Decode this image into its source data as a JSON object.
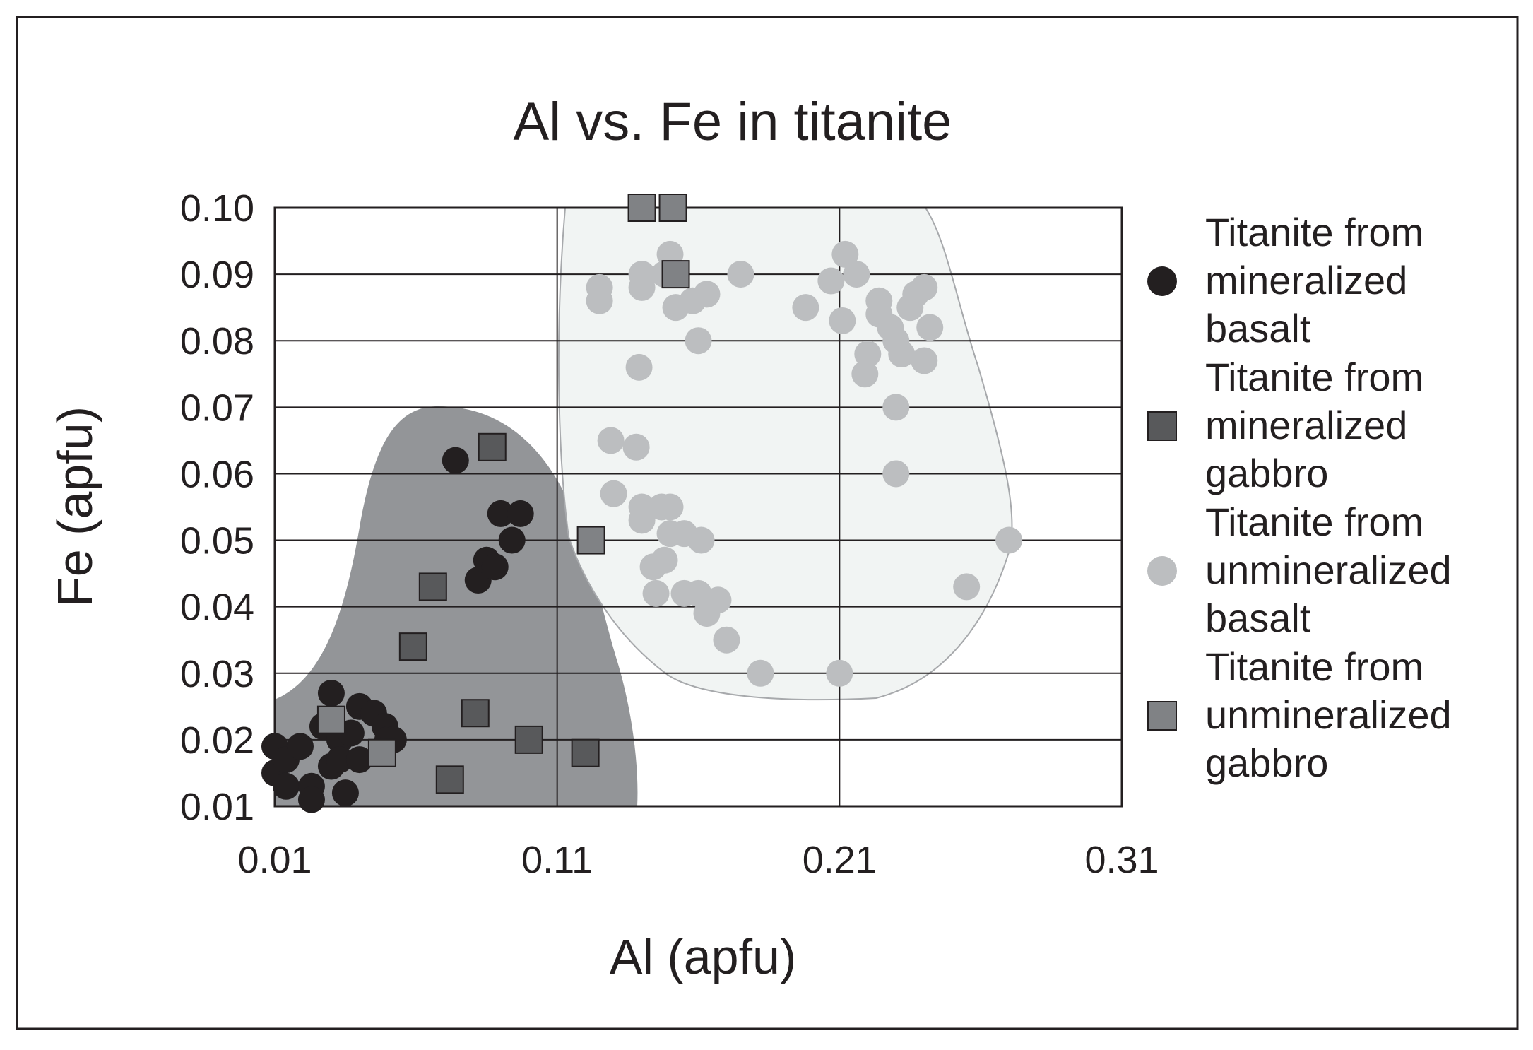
{
  "chart_data": {
    "type": "scatter",
    "title": "Al vs. Fe in titanite",
    "xlabel": "Al (apfu)",
    "ylabel": "Fe (apfu)",
    "xlim": [
      0.01,
      0.31
    ],
    "ylim": [
      0.01,
      0.1
    ],
    "x_ticks": [
      "0.01",
      "0.11",
      "0.21",
      "0.31"
    ],
    "y_ticks": [
      "0.10",
      "0.09",
      "0.08",
      "0.07",
      "0.06",
      "0.05",
      "0.04",
      "0.03",
      "0.02",
      "0.01"
    ],
    "grid": "on",
    "legend_position": "right",
    "series": [
      {
        "name": "Titanite from mineralized basalt",
        "name_lines": [
          "Titanite from",
          "mineralized",
          "basalt"
        ],
        "marker": "circle",
        "color": "#231f20",
        "points": [
          [
            0.01,
            0.019
          ],
          [
            0.01,
            0.015
          ],
          [
            0.014,
            0.017
          ],
          [
            0.014,
            0.013
          ],
          [
            0.019,
            0.019
          ],
          [
            0.023,
            0.013
          ],
          [
            0.023,
            0.011
          ],
          [
            0.027,
            0.022
          ],
          [
            0.03,
            0.027
          ],
          [
            0.03,
            0.023
          ],
          [
            0.03,
            0.016
          ],
          [
            0.033,
            0.02
          ],
          [
            0.033,
            0.017
          ],
          [
            0.035,
            0.012
          ],
          [
            0.037,
            0.021
          ],
          [
            0.04,
            0.025
          ],
          [
            0.04,
            0.017
          ],
          [
            0.045,
            0.024
          ],
          [
            0.049,
            0.022
          ],
          [
            0.05,
            0.02
          ],
          [
            0.052,
            0.02
          ],
          [
            0.074,
            0.062
          ],
          [
            0.082,
            0.044
          ],
          [
            0.085,
            0.047
          ],
          [
            0.088,
            0.046
          ],
          [
            0.09,
            0.054
          ],
          [
            0.094,
            0.05
          ],
          [
            0.097,
            0.054
          ]
        ]
      },
      {
        "name": "Titanite from mineralized gabbro",
        "name_lines": [
          "Titanite from",
          "mineralized",
          "gabbro"
        ],
        "marker": "square",
        "color": "#58595b",
        "points": [
          [
            0.087,
            0.064
          ],
          [
            0.066,
            0.043
          ],
          [
            0.059,
            0.034
          ],
          [
            0.081,
            0.024
          ],
          [
            0.072,
            0.014
          ],
          [
            0.1,
            0.02
          ],
          [
            0.12,
            0.018
          ]
        ]
      },
      {
        "name": "Titanite from unmineralized basalt",
        "name_lines": [
          "Titanite from",
          "unmineralized",
          "basalt"
        ],
        "marker": "circle",
        "color": "#bcbec0",
        "points": [
          [
            0.125,
            0.088
          ],
          [
            0.125,
            0.086
          ],
          [
            0.14,
            0.09
          ],
          [
            0.14,
            0.088
          ],
          [
            0.15,
            0.093
          ],
          [
            0.148,
            0.09
          ],
          [
            0.152,
            0.085
          ],
          [
            0.158,
            0.086
          ],
          [
            0.163,
            0.087
          ],
          [
            0.175,
            0.09
          ],
          [
            0.16,
            0.08
          ],
          [
            0.139,
            0.076
          ],
          [
            0.198,
            0.085
          ],
          [
            0.207,
            0.089
          ],
          [
            0.212,
            0.093
          ],
          [
            0.216,
            0.09
          ],
          [
            0.211,
            0.083
          ],
          [
            0.22,
            0.078
          ],
          [
            0.219,
            0.075
          ],
          [
            0.224,
            0.086
          ],
          [
            0.224,
            0.084
          ],
          [
            0.228,
            0.082
          ],
          [
            0.23,
            0.08
          ],
          [
            0.232,
            0.078
          ],
          [
            0.235,
            0.085
          ],
          [
            0.237,
            0.087
          ],
          [
            0.24,
            0.088
          ],
          [
            0.242,
            0.082
          ],
          [
            0.24,
            0.077
          ],
          [
            0.23,
            0.07
          ],
          [
            0.23,
            0.06
          ],
          [
            0.129,
            0.065
          ],
          [
            0.138,
            0.064
          ],
          [
            0.13,
            0.057
          ],
          [
            0.14,
            0.055
          ],
          [
            0.14,
            0.053
          ],
          [
            0.147,
            0.055
          ],
          [
            0.15,
            0.055
          ],
          [
            0.15,
            0.051
          ],
          [
            0.155,
            0.051
          ],
          [
            0.161,
            0.05
          ],
          [
            0.148,
            0.047
          ],
          [
            0.144,
            0.046
          ],
          [
            0.145,
            0.042
          ],
          [
            0.155,
            0.042
          ],
          [
            0.16,
            0.042
          ],
          [
            0.167,
            0.041
          ],
          [
            0.163,
            0.039
          ],
          [
            0.17,
            0.035
          ],
          [
            0.182,
            0.03
          ],
          [
            0.21,
            0.03
          ],
          [
            0.255,
            0.043
          ],
          [
            0.27,
            0.05
          ]
        ]
      },
      {
        "name": "Titanite from unmineralized gabbro",
        "name_lines": [
          "Titanite from",
          "unmineralized",
          "gabbro"
        ],
        "marker": "square",
        "color": "#808285",
        "points": [
          [
            0.14,
            0.1
          ],
          [
            0.151,
            0.1
          ],
          [
            0.152,
            0.09
          ],
          [
            0.122,
            0.05
          ],
          [
            0.03,
            0.023
          ],
          [
            0.048,
            0.018
          ]
        ]
      }
    ]
  }
}
